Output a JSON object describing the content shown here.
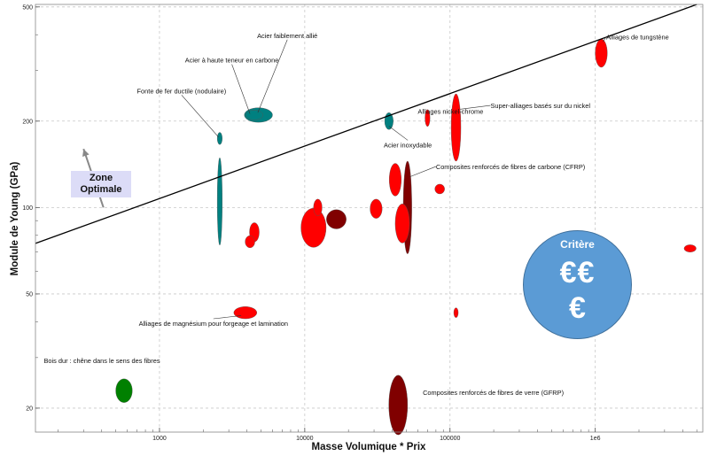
{
  "chart_data": {
    "type": "scatter",
    "title": "",
    "xlabel": "Masse Volumique * Prix",
    "ylabel": "Module de Young (GPa)",
    "x_scale": "log",
    "y_scale": "log",
    "xlim": [
      140,
      5500000
    ],
    "ylim": [
      16.5,
      510
    ],
    "grid": true,
    "x_ticks": [
      {
        "value": 1000,
        "label": "1000"
      },
      {
        "value": 10000,
        "label": "10000"
      },
      {
        "value": 100000,
        "label": "100000"
      },
      {
        "value": 1000000,
        "label": "1e6"
      }
    ],
    "y_ticks": [
      {
        "value": 20,
        "label": "20"
      },
      {
        "value": 50,
        "label": "50"
      },
      {
        "value": 100,
        "label": "100"
      },
      {
        "value": 200,
        "label": "200"
      },
      {
        "value": 500,
        "label": "500"
      }
    ],
    "guideline": {
      "points": [
        [
          140,
          75
        ],
        [
          5000000,
          510
        ]
      ],
      "color": "#000000"
    },
    "optimal_zone": {
      "label_line1": "Zone",
      "label_line2": "Optimale",
      "arrow_from": [
        400,
        100
      ],
      "arrow_to": [
        300,
        160
      ]
    },
    "materials": [
      {
        "label": "Acier faiblement allié",
        "x": 4800,
        "y": 210,
        "rx": 1.25,
        "ry": 1.06,
        "color": "#008080",
        "label_at": [
          4700,
          390
        ],
        "leader_to": [
          4750,
          214
        ]
      },
      {
        "label": "Acier à haute teneur en carbone",
        "x": 4500,
        "y": 210,
        "rx": 1.15,
        "ry": 1.04,
        "color": "#008080",
        "label_at": [
          1500,
          320
        ],
        "leader_to": [
          4200,
          212
        ]
      },
      {
        "label": "Fonte de fer ductile (nodulaire)",
        "x": 2600,
        "y": 174,
        "rx": 1.04,
        "ry": 1.05,
        "color": "#008080",
        "label_at": [
          700,
          250
        ],
        "leader_to": [
          2550,
          176
        ]
      },
      {
        "label": "",
        "x": 2600,
        "y": 105,
        "rx": 1.04,
        "ry": 1.42,
        "color": "#008080"
      },
      {
        "label": "Acier inoxydable",
        "x": 38000,
        "y": 200,
        "rx": 1.07,
        "ry": 1.07,
        "color": "#008080",
        "label_at": [
          35000,
          162
        ],
        "leader_to": [
          38000,
          192
        ]
      },
      {
        "label": "Alliages nickel-chrome",
        "x": 70000,
        "y": 205,
        "rx": 1.04,
        "ry": 1.07,
        "color": "#ff0000",
        "label_at": [
          60000,
          212
        ]
      },
      {
        "label": "Super-alliages basés sur du nickel",
        "x": 110000,
        "y": 190,
        "rx": 1.08,
        "ry": 1.31,
        "color": "#ff0000",
        "label_at": [
          190000,
          222
        ],
        "leader_to": [
          118000,
          220
        ]
      },
      {
        "label": "Alliages de tungstène",
        "x": 1100000,
        "y": 345,
        "rx": 1.1,
        "ry": 1.12,
        "color": "#ff0000",
        "label_at": [
          1190000,
          385
        ],
        "leader_to": [
          1130000,
          378
        ]
      },
      {
        "label": "Composites renforcés de fibres de carbone (CFRP)",
        "x": 51000,
        "y": 100,
        "rx": 1.07,
        "ry": 1.45,
        "color": "#800000",
        "label_at": [
          80000,
          136
        ],
        "leader_to": [
          53000,
          128
        ]
      },
      {
        "label": "",
        "x": 42000,
        "y": 125,
        "rx": 1.1,
        "ry": 1.14,
        "color": "#ff0000"
      },
      {
        "label": "",
        "x": 47000,
        "y": 88,
        "rx": 1.12,
        "ry": 1.17,
        "color": "#ff0000"
      },
      {
        "label": "",
        "x": 85000,
        "y": 116,
        "rx": 1.08,
        "ry": 1.04,
        "color": "#ff0000"
      },
      {
        "label": "",
        "x": 31000,
        "y": 99,
        "rx": 1.1,
        "ry": 1.08,
        "color": "#ff0000"
      },
      {
        "label": "",
        "x": 16500,
        "y": 91,
        "rx": 1.17,
        "ry": 1.08,
        "color": "#800000"
      },
      {
        "label": "",
        "x": 11500,
        "y": 85,
        "rx": 1.22,
        "ry": 1.17,
        "color": "#ff0000"
      },
      {
        "label": "",
        "x": 12300,
        "y": 100,
        "rx": 1.07,
        "ry": 1.07,
        "color": "#ff0000"
      },
      {
        "label": "",
        "x": 4500,
        "y": 82,
        "rx": 1.08,
        "ry": 1.08,
        "color": "#ff0000"
      },
      {
        "label": "",
        "x": 4200,
        "y": 76,
        "rx": 1.08,
        "ry": 1.05,
        "color": "#ff0000"
      },
      {
        "label": "",
        "x": 110000,
        "y": 43,
        "rx": 1.03,
        "ry": 1.04,
        "color": "#ff0000"
      },
      {
        "label": "",
        "x": 4500000,
        "y": 72,
        "rx": 1.1,
        "ry": 1.03,
        "color": "#ff0000"
      },
      {
        "label": "Alliages de magnésium pour forgeage et lamination",
        "x": 3900,
        "y": 43,
        "rx": 1.2,
        "ry": 1.05,
        "color": "#ff0000",
        "label_at": [
          720,
          38.7
        ],
        "leader_to": [
          3650,
          42
        ]
      },
      {
        "label": "Bois dur : chêne dans le sens des fibres",
        "x": 570,
        "y": 23,
        "rx": 1.14,
        "ry": 1.1,
        "color": "#008000",
        "label_at": [
          160,
          28.7
        ]
      },
      {
        "label": "Composites renforcés de fibres de verre (GFRP)",
        "x": 44000,
        "y": 20.5,
        "rx": 1.16,
        "ry": 1.27,
        "color": "#800000",
        "label_at": [
          65000,
          22.2
        ]
      }
    ]
  },
  "zone": {
    "line1": "Zone",
    "line2": "Optimale"
  },
  "criterion": {
    "title": "Critère",
    "line1": "€€",
    "line2": "€",
    "color": "#5b9bd5"
  }
}
